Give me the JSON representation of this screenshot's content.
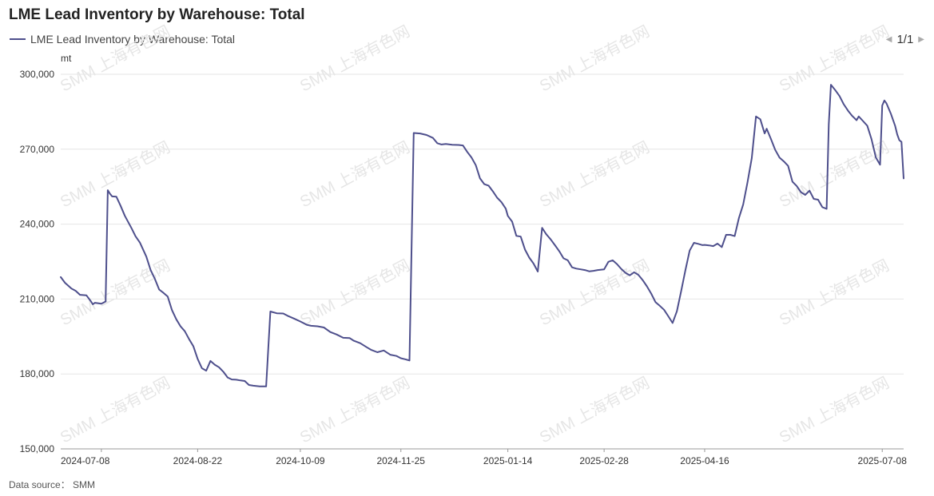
{
  "title": "LME Lead Inventory by Warehouse: Total",
  "pager": {
    "text": "1/1",
    "prev_icon": "triangle-left-icon",
    "next_icon": "triangle-right-icon"
  },
  "source": "Data source： SMM",
  "watermark": "SMM 上海有色网",
  "colors": {
    "line": "#4E4F8C",
    "grid": "#e6e6e6",
    "axis": "#333333"
  },
  "chart_data": {
    "type": "line",
    "title": "LME Lead Inventory by Warehouse: Total",
    "ylabel": "mt",
    "ylim": [
      150000,
      300000
    ],
    "yticks": [
      150000,
      180000,
      210000,
      240000,
      270000,
      300000
    ],
    "ytick_labels": [
      "150,000",
      "180,000",
      "210,000",
      "240,000",
      "270,000",
      "300,000"
    ],
    "xlim": [
      "2024-06-19",
      "2025-07-18"
    ],
    "xticks": [
      "2024-07-08",
      "2024-08-22",
      "2024-10-09",
      "2024-11-25",
      "2025-01-14",
      "2025-02-28",
      "2025-04-16",
      "2025-07-08"
    ],
    "grid": true,
    "legend_position": "top-left",
    "series": [
      {
        "name": "LME Lead Inventory by Warehouse: Total",
        "points": [
          [
            "2024-06-19",
            218800
          ],
          [
            "2024-06-21",
            216500
          ],
          [
            "2024-06-24",
            214200
          ],
          [
            "2024-06-26",
            213300
          ],
          [
            "2024-06-28",
            211700
          ],
          [
            "2024-07-01",
            211500
          ],
          [
            "2024-07-03",
            209200
          ],
          [
            "2024-07-04",
            207900
          ],
          [
            "2024-07-05",
            208500
          ],
          [
            "2024-07-08",
            208100
          ],
          [
            "2024-07-10",
            209000
          ],
          [
            "2024-07-11",
            253600
          ],
          [
            "2024-07-12",
            252200
          ],
          [
            "2024-07-13",
            251100
          ],
          [
            "2024-07-15",
            251000
          ],
          [
            "2024-07-17",
            247300
          ],
          [
            "2024-07-19",
            243300
          ],
          [
            "2024-07-22",
            238500
          ],
          [
            "2024-07-24",
            235100
          ],
          [
            "2024-07-26",
            232600
          ],
          [
            "2024-07-29",
            227000
          ],
          [
            "2024-07-31",
            221600
          ],
          [
            "2024-08-02",
            218100
          ],
          [
            "2024-08-04",
            213800
          ],
          [
            "2024-08-06",
            212500
          ],
          [
            "2024-08-08",
            211000
          ],
          [
            "2024-08-10",
            205600
          ],
          [
            "2024-08-12",
            201900
          ],
          [
            "2024-08-14",
            199100
          ],
          [
            "2024-08-16",
            197100
          ],
          [
            "2024-08-18",
            193900
          ],
          [
            "2024-08-20",
            191100
          ],
          [
            "2024-08-22",
            186000
          ],
          [
            "2024-08-24",
            182300
          ],
          [
            "2024-08-26",
            181300
          ],
          [
            "2024-08-28",
            185200
          ],
          [
            "2024-08-30",
            183700
          ],
          [
            "2024-09-01",
            182700
          ],
          [
            "2024-09-03",
            180900
          ],
          [
            "2024-09-05",
            178600
          ],
          [
            "2024-09-07",
            177800
          ],
          [
            "2024-09-09",
            177700
          ],
          [
            "2024-09-11",
            177400
          ],
          [
            "2024-09-13",
            177200
          ],
          [
            "2024-09-15",
            175600
          ],
          [
            "2024-09-17",
            175300
          ],
          [
            "2024-09-20",
            175000
          ],
          [
            "2024-09-23",
            175000
          ],
          [
            "2024-09-25",
            205000
          ],
          [
            "2024-09-28",
            204300
          ],
          [
            "2024-10-01",
            204200
          ],
          [
            "2024-10-03",
            203300
          ],
          [
            "2024-10-06",
            202200
          ],
          [
            "2024-10-09",
            201000
          ],
          [
            "2024-10-12",
            199700
          ],
          [
            "2024-10-14",
            199300
          ],
          [
            "2024-10-17",
            199100
          ],
          [
            "2024-10-20",
            198600
          ],
          [
            "2024-10-23",
            196800
          ],
          [
            "2024-10-26",
            195800
          ],
          [
            "2024-10-29",
            194500
          ],
          [
            "2024-11-01",
            194400
          ],
          [
            "2024-11-03",
            193300
          ],
          [
            "2024-11-06",
            192300
          ],
          [
            "2024-11-09",
            190700
          ],
          [
            "2024-11-11",
            189700
          ],
          [
            "2024-11-14",
            188700
          ],
          [
            "2024-11-17",
            189400
          ],
          [
            "2024-11-20",
            187700
          ],
          [
            "2024-11-23",
            187200
          ],
          [
            "2024-11-25",
            186300
          ],
          [
            "2024-11-27",
            185900
          ],
          [
            "2024-11-29",
            185400
          ],
          [
            "2024-12-01",
            276500
          ],
          [
            "2024-12-04",
            276300
          ],
          [
            "2024-12-07",
            275700
          ],
          [
            "2024-12-10",
            274500
          ],
          [
            "2024-12-12",
            272400
          ],
          [
            "2024-12-14",
            271900
          ],
          [
            "2024-12-16",
            272100
          ],
          [
            "2024-12-19",
            271800
          ],
          [
            "2024-12-22",
            271700
          ],
          [
            "2024-12-24",
            271500
          ],
          [
            "2024-12-26",
            268900
          ],
          [
            "2024-12-28",
            266700
          ],
          [
            "2024-12-30",
            263600
          ],
          [
            "2025-01-01",
            258300
          ],
          [
            "2025-01-03",
            256000
          ],
          [
            "2025-01-05",
            255400
          ],
          [
            "2025-01-07",
            253100
          ],
          [
            "2025-01-09",
            250600
          ],
          [
            "2025-01-11",
            248800
          ],
          [
            "2025-01-13",
            246200
          ],
          [
            "2025-01-14",
            243300
          ],
          [
            "2025-01-16",
            241000
          ],
          [
            "2025-01-18",
            235300
          ],
          [
            "2025-01-20",
            235000
          ],
          [
            "2025-01-22",
            229800
          ],
          [
            "2025-01-24",
            226600
          ],
          [
            "2025-01-26",
            224200
          ],
          [
            "2025-01-28",
            221000
          ],
          [
            "2025-01-30",
            238500
          ],
          [
            "2025-02-01",
            235900
          ],
          [
            "2025-02-03",
            233900
          ],
          [
            "2025-02-05",
            231600
          ],
          [
            "2025-02-07",
            229200
          ],
          [
            "2025-02-09",
            226300
          ],
          [
            "2025-02-11",
            225500
          ],
          [
            "2025-02-13",
            222700
          ],
          [
            "2025-02-15",
            222200
          ],
          [
            "2025-02-17",
            221900
          ],
          [
            "2025-02-19",
            221600
          ],
          [
            "2025-02-21",
            221100
          ],
          [
            "2025-02-23",
            221300
          ],
          [
            "2025-02-25",
            221600
          ],
          [
            "2025-02-28",
            221900
          ],
          [
            "2025-03-02",
            224900
          ],
          [
            "2025-03-04",
            225500
          ],
          [
            "2025-03-06",
            224000
          ],
          [
            "2025-03-08",
            222100
          ],
          [
            "2025-03-10",
            220500
          ],
          [
            "2025-03-12",
            219500
          ],
          [
            "2025-03-14",
            220700
          ],
          [
            "2025-03-16",
            219700
          ],
          [
            "2025-03-18",
            217600
          ],
          [
            "2025-03-20",
            215100
          ],
          [
            "2025-03-22",
            212200
          ],
          [
            "2025-03-24",
            208800
          ],
          [
            "2025-03-26",
            207300
          ],
          [
            "2025-03-28",
            205700
          ],
          [
            "2025-03-30",
            203100
          ],
          [
            "2025-04-01",
            200400
          ],
          [
            "2025-04-03",
            205100
          ],
          [
            "2025-04-05",
            213100
          ],
          [
            "2025-04-07",
            221600
          ],
          [
            "2025-04-09",
            229400
          ],
          [
            "2025-04-11",
            232500
          ],
          [
            "2025-04-13",
            232100
          ],
          [
            "2025-04-15",
            231600
          ],
          [
            "2025-04-16",
            231700
          ],
          [
            "2025-04-18",
            231500
          ],
          [
            "2025-04-20",
            231200
          ],
          [
            "2025-04-22",
            232200
          ],
          [
            "2025-04-24",
            230800
          ],
          [
            "2025-04-26",
            235700
          ],
          [
            "2025-04-28",
            235700
          ],
          [
            "2025-04-30",
            235200
          ],
          [
            "2025-05-02",
            242400
          ],
          [
            "2025-05-04",
            247900
          ],
          [
            "2025-05-06",
            256600
          ],
          [
            "2025-05-08",
            266400
          ],
          [
            "2025-05-10",
            283100
          ],
          [
            "2025-05-12",
            282000
          ],
          [
            "2025-05-14",
            276300
          ],
          [
            "2025-05-15",
            278200
          ],
          [
            "2025-05-17",
            274000
          ],
          [
            "2025-05-19",
            269700
          ],
          [
            "2025-05-21",
            266600
          ],
          [
            "2025-05-23",
            265100
          ],
          [
            "2025-05-25",
            263300
          ],
          [
            "2025-05-27",
            257000
          ],
          [
            "2025-05-29",
            255300
          ],
          [
            "2025-05-31",
            252800
          ],
          [
            "2025-06-02",
            251700
          ],
          [
            "2025-06-04",
            253400
          ],
          [
            "2025-06-06",
            250100
          ],
          [
            "2025-06-08",
            249800
          ],
          [
            "2025-06-10",
            246800
          ],
          [
            "2025-06-12",
            246100
          ],
          [
            "2025-06-13",
            280000
          ],
          [
            "2025-06-14",
            295800
          ],
          [
            "2025-06-16",
            293700
          ],
          [
            "2025-06-18",
            291300
          ],
          [
            "2025-06-20",
            288000
          ],
          [
            "2025-06-22",
            285400
          ],
          [
            "2025-06-24",
            283300
          ],
          [
            "2025-06-26",
            281600
          ],
          [
            "2025-06-27",
            283100
          ],
          [
            "2025-06-29",
            281300
          ],
          [
            "2025-07-01",
            279400
          ],
          [
            "2025-07-03",
            274000
          ],
          [
            "2025-07-05",
            266700
          ],
          [
            "2025-07-07",
            263800
          ],
          [
            "2025-07-08",
            287500
          ],
          [
            "2025-07-09",
            289500
          ],
          [
            "2025-07-10",
            288300
          ],
          [
            "2025-07-12",
            284300
          ],
          [
            "2025-07-14",
            279400
          ],
          [
            "2025-07-15",
            275900
          ],
          [
            "2025-07-16",
            273600
          ],
          [
            "2025-07-17",
            272900
          ],
          [
            "2025-07-18",
            258300
          ]
        ]
      }
    ]
  }
}
